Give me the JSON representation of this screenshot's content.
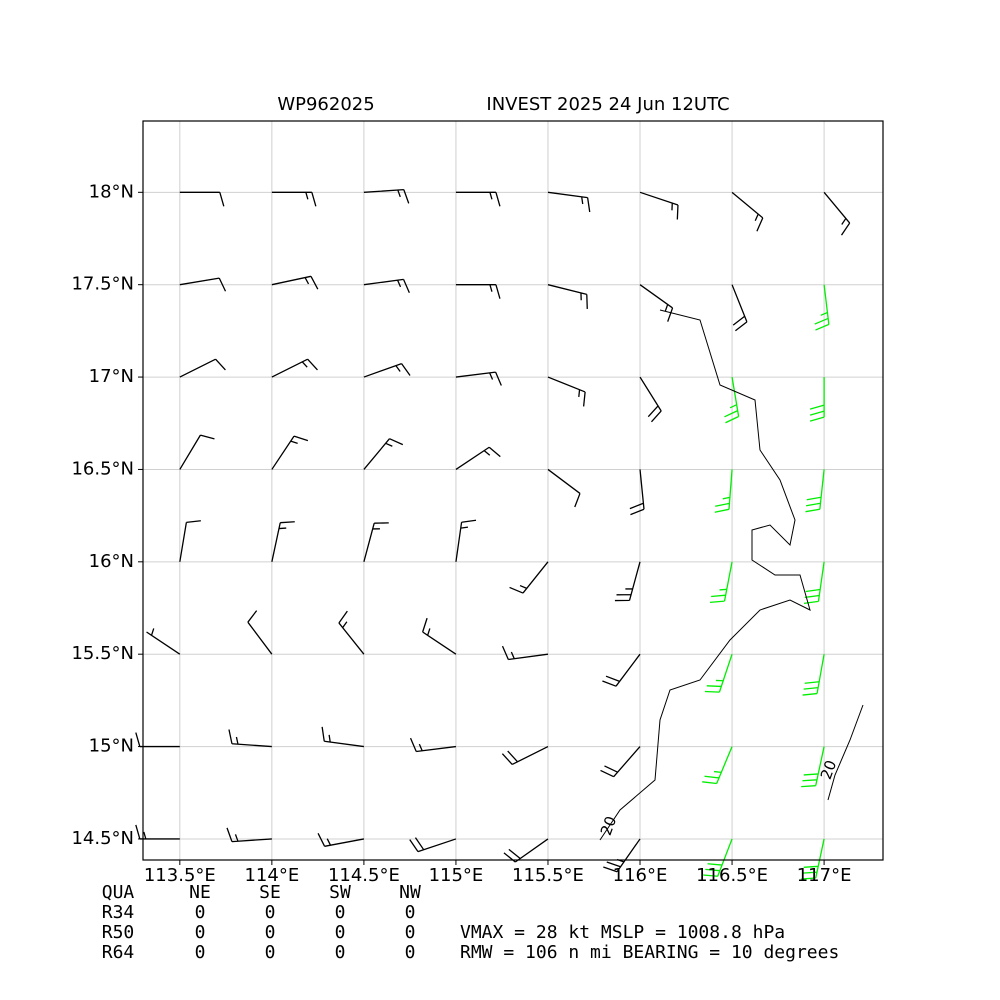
{
  "chart_data": {
    "type": "barbs",
    "title_left": "WP962025",
    "title_right": "INVEST 2025 24 Jun 12UTC",
    "xlim": [
      113.3,
      117.32
    ],
    "ylim": [
      14.386,
      18.386
    ],
    "xticks": [
      {
        "value": 113.5,
        "label": "113.5°E"
      },
      {
        "value": 114,
        "label": "114°E"
      },
      {
        "value": 114.5,
        "label": "114.5°E"
      },
      {
        "value": 115,
        "label": "115°E"
      },
      {
        "value": 115.5,
        "label": "115.5°E"
      },
      {
        "value": 116,
        "label": "116°E"
      },
      {
        "value": 116.5,
        "label": "116.5°E"
      },
      {
        "value": 117,
        "label": "117°E"
      }
    ],
    "yticks": [
      {
        "value": 14.5,
        "label": "14.5°N"
      },
      {
        "value": 15,
        "label": "15°N"
      },
      {
        "value": 15.5,
        "label": "15.5°N"
      },
      {
        "value": 16,
        "label": "16°N"
      },
      {
        "value": 16.5,
        "label": "16.5°N"
      },
      {
        "value": 17,
        "label": "17°N"
      },
      {
        "value": 17.5,
        "label": "17.5°N"
      },
      {
        "value": 18,
        "label": "18°N"
      }
    ],
    "grid": true,
    "annotations": [
      "20",
      "20"
    ],
    "series": [
      {
        "color": "#000000",
        "x": [
          113.5,
          114,
          114.5,
          115,
          115.5,
          116,
          116.5,
          117,
          113.5,
          114,
          114.5,
          115,
          115.5,
          116,
          116.5,
          113.5,
          114,
          114.5,
          115,
          115.5,
          116,
          113.5,
          114,
          114.5,
          115,
          115.5,
          116,
          113.5,
          114,
          114.5,
          115,
          115.5,
          116,
          113.5,
          114,
          114.5,
          115,
          115.5,
          116,
          113.5,
          114,
          114.5,
          115,
          115.5,
          116,
          113.5,
          114,
          114.5,
          115,
          115.5,
          116
        ],
        "y": [
          18,
          18,
          18,
          18,
          18,
          18,
          18,
          18,
          17.5,
          17.5,
          17.5,
          17.5,
          17.5,
          17.5,
          17.5,
          17,
          17,
          17,
          17,
          17,
          17,
          16.5,
          16.5,
          16.5,
          16.5,
          16.5,
          16.5,
          16,
          16,
          16,
          16,
          16,
          16,
          15.5,
          15.5,
          15.5,
          15.5,
          15.5,
          15.5,
          15,
          15,
          15,
          15,
          15,
          15,
          14.5,
          14.5,
          14.5,
          14.5,
          14.5,
          14.5
        ],
        "u": [
          -12,
          -15,
          -15,
          -15,
          -15,
          -15,
          -12,
          -10,
          -12,
          -14,
          -15,
          -16,
          -16,
          -14,
          -8,
          -10,
          -12,
          -14,
          -16,
          -15,
          -10,
          -6,
          -8,
          -10,
          -12,
          -8,
          -2,
          -2,
          -3,
          -4,
          -2,
          8,
          6,
          6,
          6,
          8,
          12,
          15,
          12,
          12,
          14,
          15,
          16,
          16,
          14,
          14,
          15,
          16,
          18,
          17,
          14
        ],
        "v": [
          0,
          0,
          -1,
          0,
          2,
          5,
          10,
          12,
          -2,
          -3,
          -2,
          0,
          4,
          10,
          20,
          -5,
          -6,
          -5,
          -2,
          6,
          16,
          -10,
          -12,
          -12,
          -8,
          6,
          20,
          -12,
          -14,
          -15,
          -14,
          10,
          22,
          -4,
          -8,
          -10,
          -8,
          2,
          16,
          0,
          -1,
          -2,
          2,
          8,
          16,
          0,
          1,
          3,
          6,
          12,
          20
        ]
      },
      {
        "color": "#00ee00",
        "x": [
          117,
          116.5,
          117,
          116.5,
          117,
          116.5,
          117,
          116.5,
          117,
          116.5,
          117,
          116.5,
          117
        ],
        "y": [
          17.5,
          17,
          17,
          16.5,
          16.5,
          16,
          16,
          15.5,
          15.5,
          15,
          15,
          14.5,
          14.5
        ],
        "u": [
          -3,
          -4,
          0,
          2,
          3,
          5,
          4,
          8,
          5,
          10,
          6,
          10,
          6
        ],
        "v": [
          25,
          24,
          28,
          26,
          28,
          26,
          28,
          24,
          28,
          24,
          28,
          26,
          28
        ]
      }
    ]
  },
  "table": {
    "header": [
      "QUA",
      "NE",
      "SE",
      "SW",
      "NW"
    ],
    "rows": [
      {
        "label": "R34",
        "values": [
          0,
          0,
          0,
          0
        ]
      },
      {
        "label": "R50",
        "values": [
          0,
          0,
          0,
          0
        ]
      },
      {
        "label": "R64",
        "values": [
          0,
          0,
          0,
          0
        ]
      }
    ]
  },
  "summary": {
    "vmax_label": "VMAX =",
    "vmax": 28,
    "vmax_unit": "kt",
    "mslp_label": "MSLP =",
    "mslp": 1008.8,
    "mslp_unit": "hPa",
    "rmw_label": "RMW =",
    "rmw": 106,
    "rmw_unit": "n mi",
    "bearing_label": "BEARING =",
    "bearing": 10,
    "bearing_unit": "degrees"
  }
}
